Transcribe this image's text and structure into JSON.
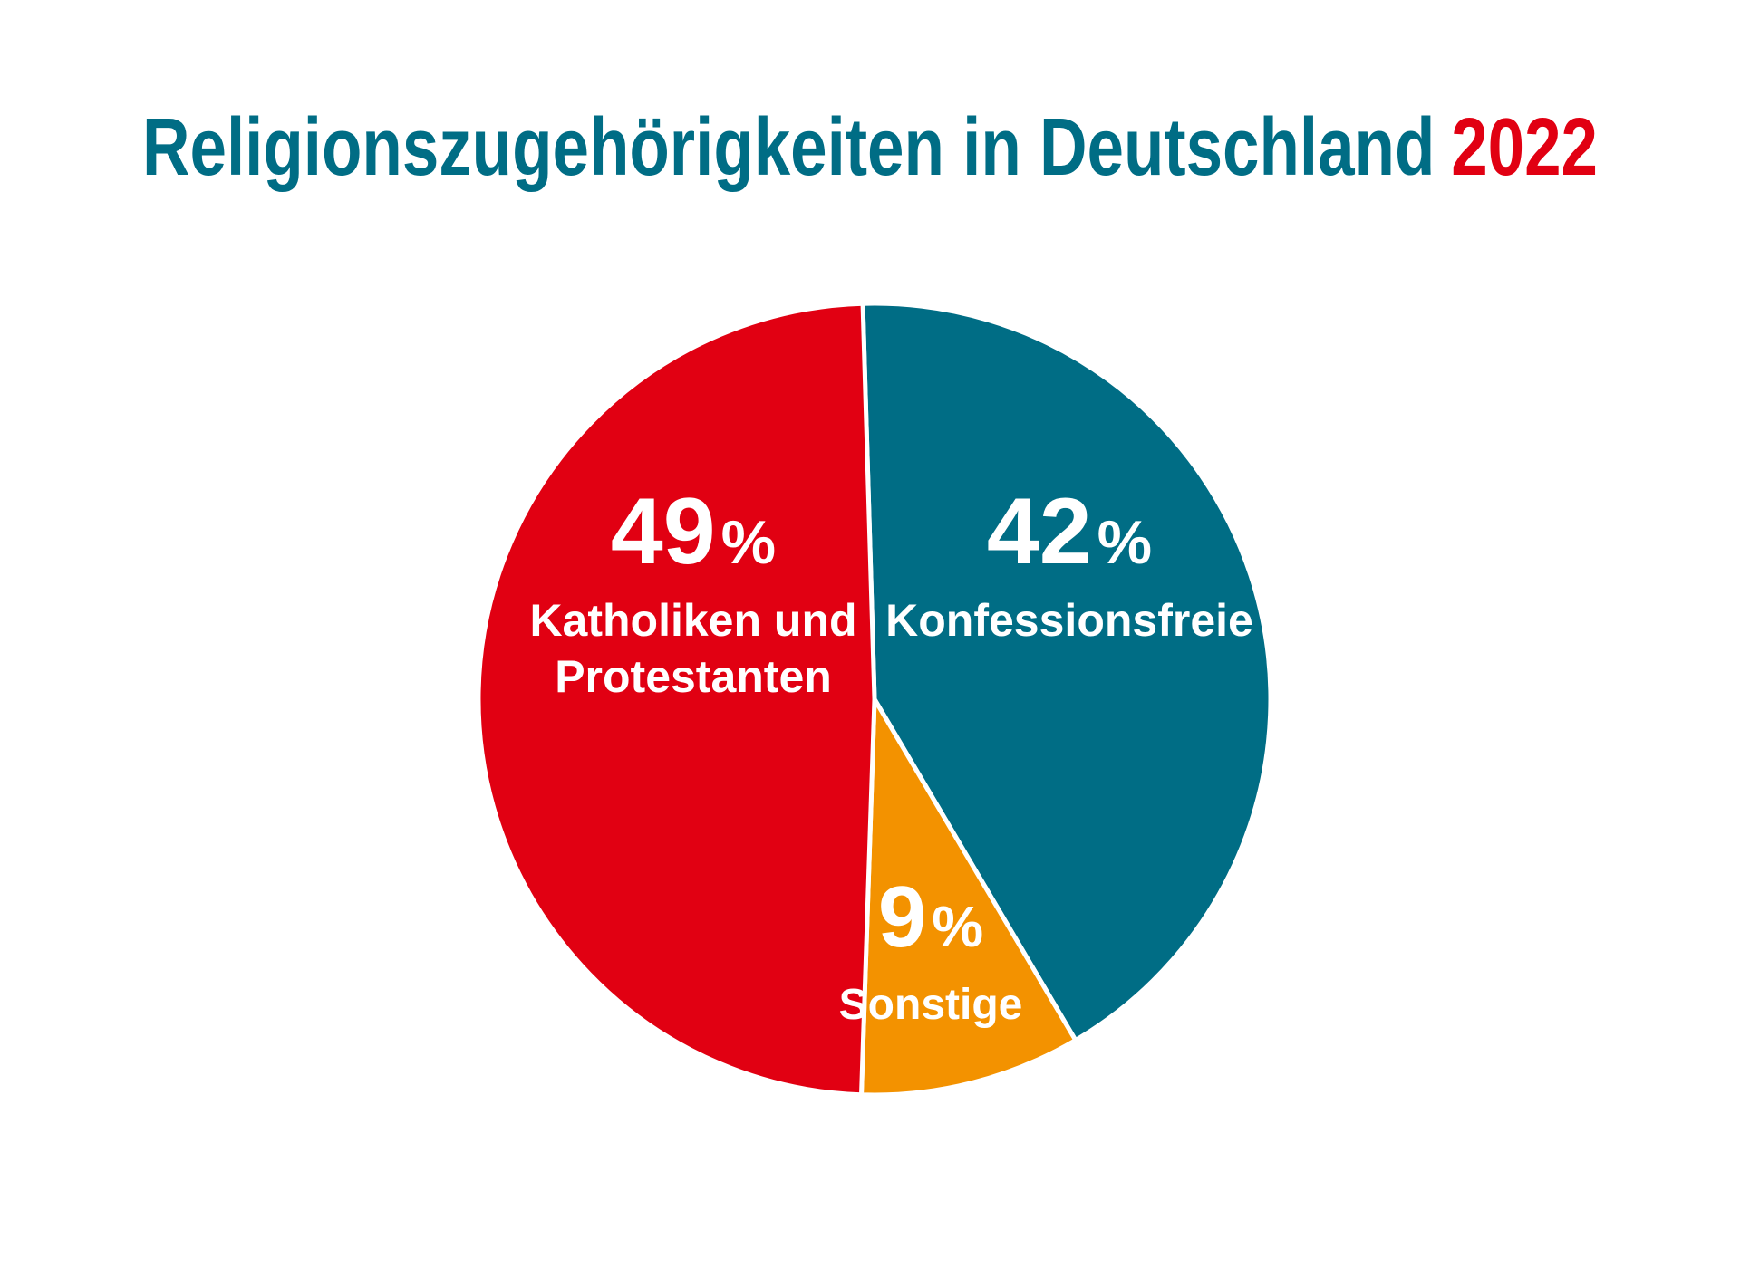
{
  "chart_data": {
    "type": "pie",
    "title": "Religionszugehörigkeiten in Deutschland",
    "title_year": "2022",
    "slices": [
      {
        "pct": "49",
        "unit": "%",
        "label_lines": [
          "Katholiken und",
          "Protestanten"
        ],
        "value": 49,
        "color": "#e10012"
      },
      {
        "pct": "42",
        "unit": "%",
        "label_lines": [
          "Konfessionsfreie"
        ],
        "value": 42,
        "color": "#006d85"
      },
      {
        "pct": "9",
        "unit": "%",
        "label_lines": [
          "Sonstige"
        ],
        "value": 9,
        "color": "#f39200"
      }
    ]
  },
  "colors": {
    "title": "#006d85",
    "year": "#e10012",
    "background": "#ffffff",
    "label": "#ffffff"
  }
}
